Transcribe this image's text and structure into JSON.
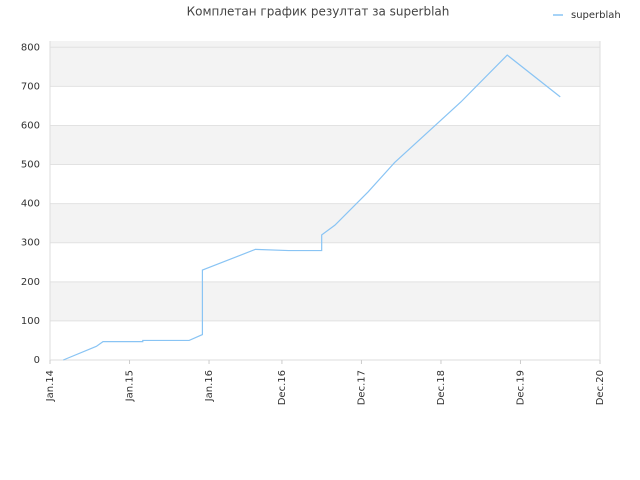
{
  "chart_data": {
    "type": "line",
    "title": "Комплетан график резултат за superblah",
    "x": [
      "2014-03",
      "2014-08",
      "2014-09",
      "2015-03",
      "2015-03",
      "2015-10",
      "2015-12",
      "2015-12",
      "2016-08",
      "2017-01",
      "2017-06",
      "2017-06",
      "2017-08",
      "2018-01",
      "2018-05",
      "2019-03",
      "2019-10",
      "2020-06"
    ],
    "series": [
      {
        "name": "superblah",
        "color": "#89c4f4",
        "values": [
          0,
          35,
          47,
          47,
          50,
          50,
          65,
          230,
          283,
          280,
          280,
          320,
          345,
          430,
          505,
          660,
          780,
          673
        ]
      }
    ],
    "xlim": [
      "2014-01",
      "2020-12"
    ],
    "xticks": [
      {
        "value": "2014-01",
        "label": "Jan.14"
      },
      {
        "value": "2015-01",
        "label": "Jan.15"
      },
      {
        "value": "2016-01",
        "label": "Jan.16"
      },
      {
        "value": "2016-12",
        "label": "Dec.16"
      },
      {
        "value": "2017-12",
        "label": "Dec.17"
      },
      {
        "value": "2018-12",
        "label": "Dec.18"
      },
      {
        "value": "2019-12",
        "label": "Dec.19"
      },
      {
        "value": "2020-12",
        "label": "Dec.20"
      }
    ],
    "ylim": [
      0,
      816
    ],
    "yticks": [
      0,
      100,
      200,
      300,
      400,
      500,
      600,
      700,
      800
    ],
    "grid": true,
    "legend": "top-right"
  }
}
